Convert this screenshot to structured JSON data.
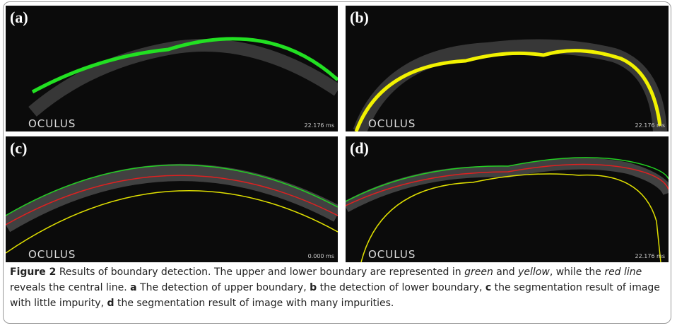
{
  "panels": [
    {
      "label": "(a)",
      "logo": "OCULUS",
      "time": "22.176 ms"
    },
    {
      "label": "(b)",
      "logo": "OCULUS",
      "time": "22.176 ms"
    },
    {
      "label": "(c)",
      "logo": "OCULUS",
      "time": "0.000 ms"
    },
    {
      "label": "(d)",
      "logo": "OCULUS",
      "time": "22.176 ms"
    }
  ],
  "caption": {
    "figure": "Figure 2",
    "segments": [
      {
        "text": " Results of boundary detection. The upper and lower boundary are represented in "
      },
      {
        "text": "green",
        "style": "italic"
      },
      {
        "text": " and "
      },
      {
        "text": "yellow",
        "style": "italic"
      },
      {
        "text": ", while the "
      },
      {
        "text": "red line",
        "style": "italic"
      },
      {
        "text": " reveals the central line. "
      },
      {
        "text": "a",
        "style": "bold"
      },
      {
        "text": " The detection of upper boundary, "
      },
      {
        "text": "b",
        "style": "bold"
      },
      {
        "text": " the detection of lower boundary, "
      },
      {
        "text": "c",
        "style": "bold"
      },
      {
        "text": " the segmentation result of image with little impurity, "
      },
      {
        "text": "d",
        "style": "bold"
      },
      {
        "text": " the segmentation result of image with many impurities."
      }
    ]
  }
}
